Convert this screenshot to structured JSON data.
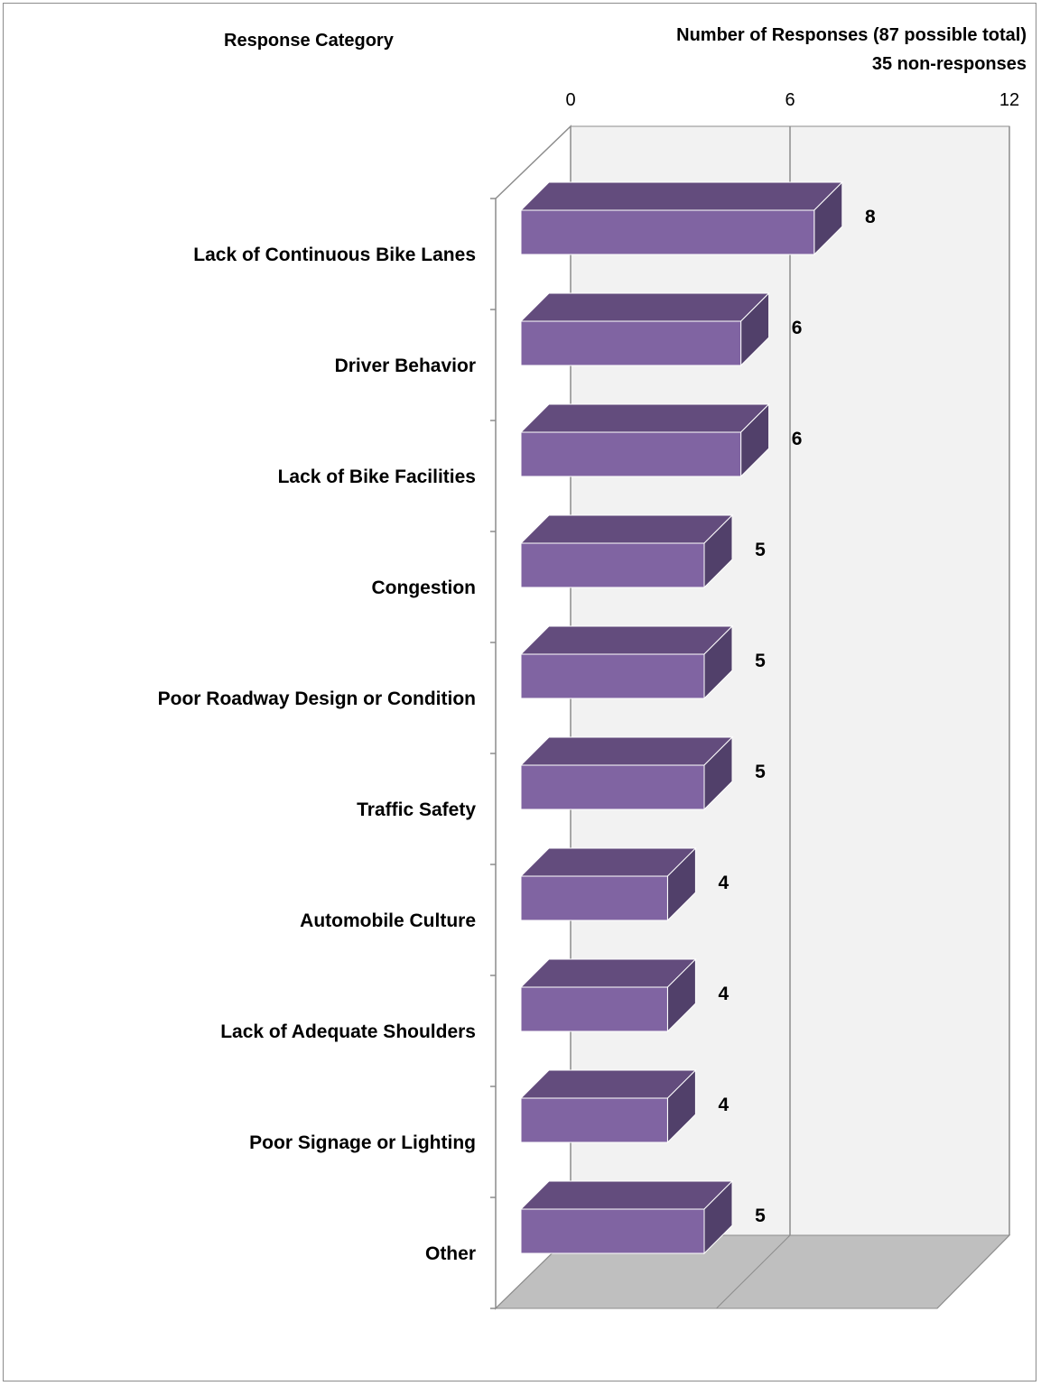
{
  "chart_data": {
    "type": "bar",
    "orientation": "horizontal",
    "three_d": true,
    "category_axis_title": "Response Category",
    "value_axis_title": "Number of Responses (87 possible total)",
    "subtitle": "35 non-responses",
    "categories": [
      "Lack of Continuous Bike Lanes",
      "Driver Behavior",
      "Lack of Bike Facilities",
      "Congestion",
      "Poor Roadway Design or Condition",
      "Traffic Safety",
      "Automobile Culture",
      "Lack of Adequate Shoulders",
      "Poor Signage or Lighting",
      "Other"
    ],
    "values": [
      8,
      6,
      6,
      5,
      5,
      5,
      4,
      4,
      4,
      5
    ],
    "xlim": [
      0,
      12
    ],
    "xticks": [
      "0",
      "6",
      "12"
    ],
    "grid": true,
    "legend": "none",
    "colors": {
      "bar_front": "#8064a2",
      "bar_top": "#634c7d",
      "bar_side": "#51406a",
      "wall": "#f2f2f2",
      "floor": "#bfbfbf",
      "gridline": "#8c8c8c"
    }
  }
}
